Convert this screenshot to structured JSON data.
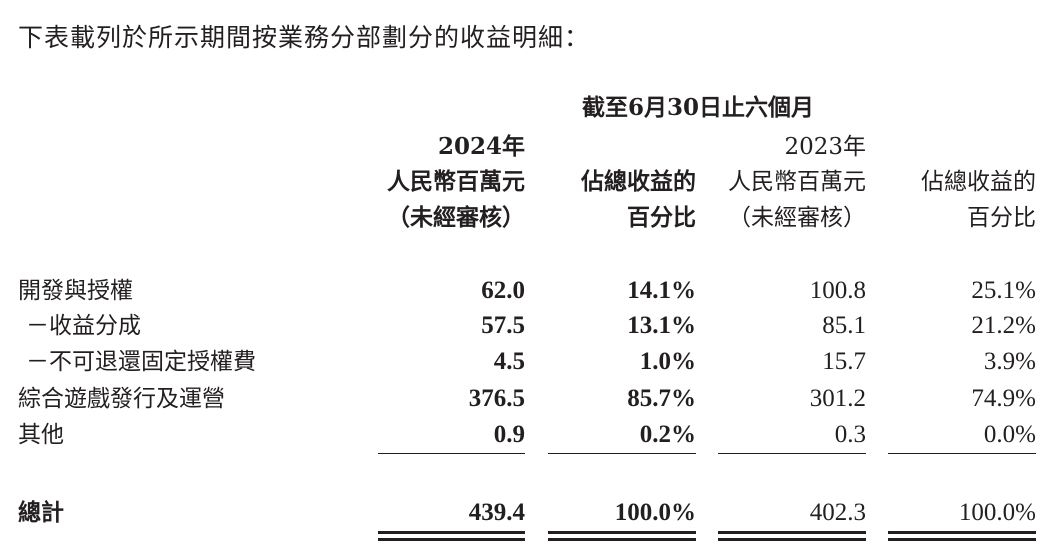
{
  "intro": "下表載列於所示期間按業務分部劃分的收益明細：",
  "header": {
    "period": "截至6月30日止六個月",
    "year_2024": "2024年",
    "year_2023": "2023年",
    "col1_line1": "人民幣百萬元",
    "col1_line2": "（未經審核）",
    "col2_line1": "佔總收益的",
    "col2_line2": "百分比",
    "col3_line1": "人民幣百萬元",
    "col3_line2": "（未經審核）",
    "col4_line1": "佔總收益的",
    "col4_line2": "百分比"
  },
  "rows": [
    {
      "label": "開發與授權",
      "v2024": "62.0",
      "p2024": "14.1%",
      "v2023": "100.8",
      "p2023": "25.1%"
    },
    {
      "label": "－收益分成",
      "v2024": "57.5",
      "p2024": "13.1%",
      "v2023": "85.1",
      "p2023": "21.2%"
    },
    {
      "label": "－不可退還固定授權費",
      "v2024": "4.5",
      "p2024": "1.0%",
      "v2023": "15.7",
      "p2023": "3.9%"
    },
    {
      "label": "綜合遊戲發行及運營",
      "v2024": "376.5",
      "p2024": "85.7%",
      "v2023": "301.2",
      "p2023": "74.9%"
    },
    {
      "label": "其他",
      "v2024": "0.9",
      "p2024": "0.2%",
      "v2023": "0.3",
      "p2023": "0.0%"
    }
  ],
  "total": {
    "label": "總計",
    "v2024": "439.4",
    "p2024": "100.0%",
    "v2023": "402.3",
    "p2023": "100.0%"
  }
}
